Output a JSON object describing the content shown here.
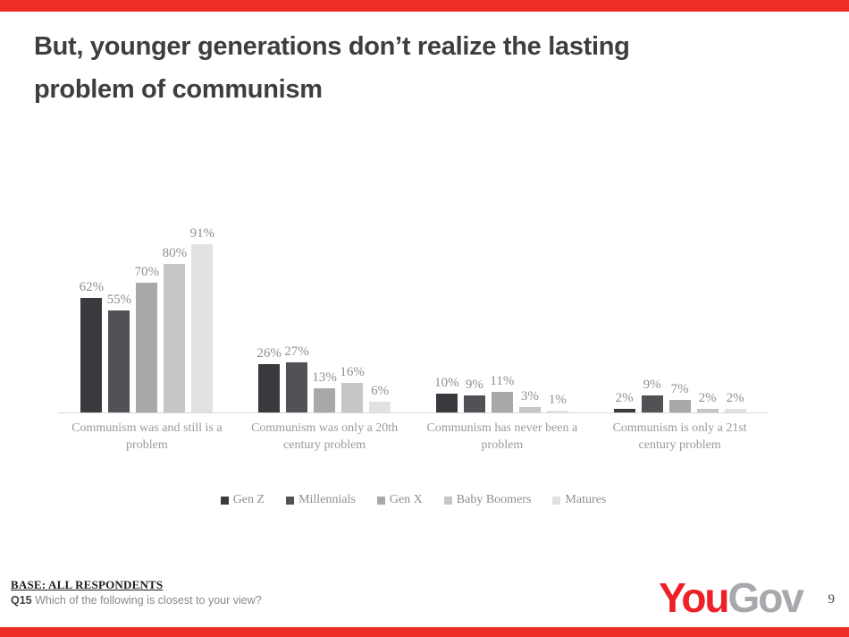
{
  "slide": {
    "title_line1": "But, younger generations don’t realize the lasting",
    "title_line2": "problem of communism",
    "accent_red": "#ee2d26",
    "page_number": "9"
  },
  "chart_data": {
    "type": "bar",
    "title": "",
    "xlabel": "",
    "ylabel": "",
    "value_suffix": "%",
    "ylim": [
      0,
      100
    ],
    "grid": false,
    "legend_position": "bottom",
    "axis_line_color": "#d9d9d9",
    "categories": [
      "Communism was and still is a problem",
      "Communism was only a 20th century problem",
      "Communism has never been a problem",
      "Communism is only a 21st century problem"
    ],
    "series": [
      {
        "name": "Gen Z",
        "color": "#3a393d",
        "values": [
          62,
          26,
          10,
          2
        ]
      },
      {
        "name": "Millennials",
        "color": "#525156",
        "values": [
          55,
          27,
          9,
          9
        ]
      },
      {
        "name": "Gen X",
        "color": "#a8a7a9",
        "values": [
          70,
          13,
          11,
          7
        ]
      },
      {
        "name": "Baby Boomers",
        "color": "#c6c5c7",
        "values": [
          80,
          16,
          3,
          2
        ]
      },
      {
        "name": "Matures",
        "color": "#e2e1e3",
        "values": [
          91,
          6,
          1,
          2
        ]
      }
    ]
  },
  "footer": {
    "base_label": "BASE: ALL RESPONDENTS",
    "question_id": "Q15",
    "question_text": "Which of the following is closest to your view?"
  },
  "logo": {
    "part1": "You",
    "part2": "Gov",
    "part1_color": "#ec2026",
    "part2_color": "#a6a8ab"
  }
}
